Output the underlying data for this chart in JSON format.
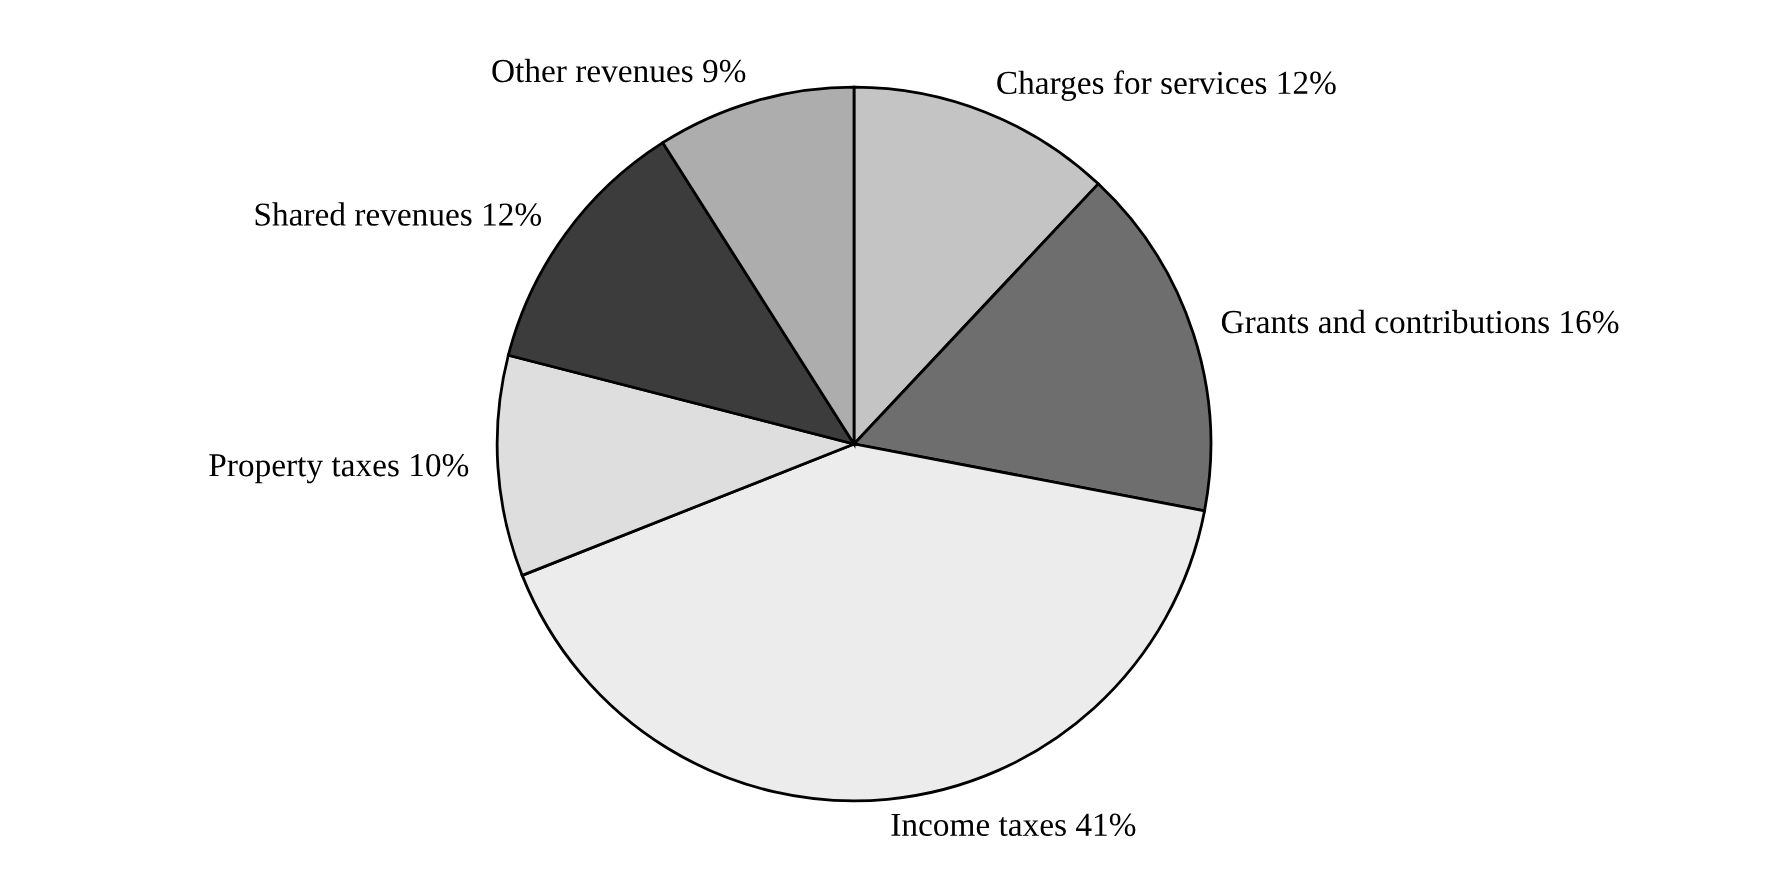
{
  "chart_data": {
    "type": "pie",
    "categories": [
      "Charges for services",
      "Grants and contributions",
      "Income taxes",
      "Property taxes",
      "Shared revenues",
      "Other revenues"
    ],
    "values": [
      12,
      16,
      41,
      10,
      12,
      9
    ],
    "value_labels": [
      "12%",
      "16%",
      "41%",
      "10%",
      "12%",
      "9%"
    ],
    "colors": [
      "#c4c4c4",
      "#6e6e6e",
      "#ececec",
      "#dedede",
      "#3c3c3c",
      "#adadad"
    ],
    "legend": false
  }
}
